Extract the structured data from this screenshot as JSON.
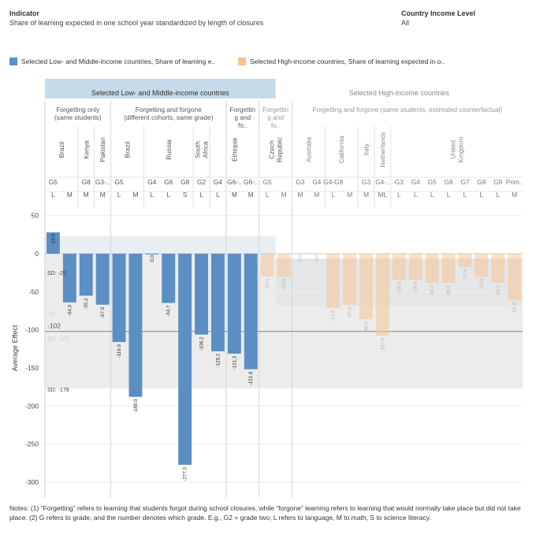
{
  "header": {
    "indicator_label": "Indicator",
    "indicator_value": "Share of learning expected in one school year standardized by length of closures",
    "income_label": "Country Income Level",
    "income_value": "All"
  },
  "legend": [
    {
      "label": "Selected Low- and Middle-income countries, Share of learning e..",
      "color": "#5b8fc3"
    },
    {
      "label": "Selected High-income countries, Share of learning expected in o..",
      "color": "#f5c28f"
    }
  ],
  "notes": "Notes: (1) “Forgetting” refers to learning that students forgot during school closures, while “forgone” learning refers to learning that would normally take place but did not take place.  (2)  G refers to grade, and the number denotes which grade. E.g., G2 = grade two; L refers to language, M to math, S to science literacy.",
  "colors": {
    "lmic": "#5b8fc3",
    "hic": "#f5c28f",
    "lmic_header": "#c5dbe9",
    "sd_band": "#ececec"
  },
  "chart_data": {
    "type": "bar",
    "ylabel": "Average Effect",
    "ylim": [
      -315,
      60
    ],
    "yticks": [
      50,
      0,
      -50,
      -100,
      -150,
      -200,
      -250,
      -300
    ],
    "reference_line": {
      "value": -102,
      "label": "-102"
    },
    "sd_annotations": [
      {
        "label": "SD: -25",
        "value": -25
      },
      {
        "label": "SD: -178",
        "value": -178
      }
    ],
    "faded_labels": [
      {
        "label": "-69",
        "value": -69
      },
      {
        "label": "SD: -102",
        "value": -102
      }
    ],
    "group_headers": [
      {
        "label": "Selected Low- and Middle-income countries",
        "from": 0,
        "to": 14
      },
      {
        "label": "Selected High-income countries",
        "from": 14,
        "to": 29
      }
    ],
    "subgroup_headers": [
      {
        "label": "Forgetting only (same students)",
        "from": 0,
        "to": 4
      },
      {
        "label": "Forgetting and forgone (different cohorts, same grade)",
        "from": 4,
        "to": 11
      },
      {
        "label": "Forgettin g and fo..",
        "from": 11,
        "to": 13
      },
      {
        "label": "Forgettin g and fo..",
        "from": 13,
        "to": 15
      },
      {
        "label": "Forgetting and forgone (same students, estimated counterfactual)",
        "from": 15,
        "to": 29
      }
    ],
    "countries": [
      {
        "label": "Brazil",
        "from": 0,
        "to": 2
      },
      {
        "label": "Kenya",
        "from": 2,
        "to": 3
      },
      {
        "label": "Pakistan",
        "from": 3,
        "to": 4
      },
      {
        "label": "Brazil",
        "from": 4,
        "to": 6
      },
      {
        "label": "Russia",
        "from": 6,
        "to": 9
      },
      {
        "label": "South Africa",
        "from": 9,
        "to": 10
      },
      {
        "label": "Ethiopia",
        "from": 10,
        "to": 13
      },
      {
        "label": "Czech Republic",
        "from": 13,
        "to": 15
      },
      {
        "label": "Australia",
        "from": 15,
        "to": 17
      },
      {
        "label": "California",
        "from": 17,
        "to": 19
      },
      {
        "label": "Italy",
        "from": 19,
        "to": 20
      },
      {
        "label": "Netherlands",
        "from": 20,
        "to": 21
      },
      {
        "label": "United Kingdom",
        "from": 21,
        "to": 29
      }
    ],
    "bars": [
      {
        "grade": "G5",
        "subject": "L",
        "value": 28.0,
        "label": "28.0",
        "series": "lmic"
      },
      {
        "grade": "",
        "subject": "M",
        "value": -64.0,
        "label": "-64.0",
        "series": "lmic"
      },
      {
        "grade": "G8",
        "subject": "M",
        "value": -55.2,
        "label": "-55.2",
        "series": "lmic"
      },
      {
        "grade": "G3-..",
        "subject": "M",
        "value": -67.0,
        "label": "-67.0",
        "series": "lmic"
      },
      {
        "grade": "G5",
        "subject": "L",
        "value": -116.0,
        "label": "-116.0",
        "series": "lmic"
      },
      {
        "grade": "",
        "subject": "M",
        "value": -188.0,
        "label": "-188.0",
        "series": "lmic"
      },
      {
        "grade": "G4",
        "subject": "L",
        "value": 0.0,
        "label": "0.0",
        "series": "lmic"
      },
      {
        "grade": "G6",
        "subject": "L",
        "value": -64.7,
        "label": "-64.7",
        "series": "lmic"
      },
      {
        "grade": "G8",
        "subject": "S",
        "value": -277.3,
        "label": "-277.3",
        "series": "lmic"
      },
      {
        "grade": "G2",
        "subject": "L",
        "value": -106.2,
        "label": "-106.2",
        "series": "lmic"
      },
      {
        "grade": "G4",
        "subject": "L",
        "value": -128.2,
        "label": "-128.2",
        "series": "lmic"
      },
      {
        "grade": "G6-..",
        "subject": "M",
        "value": -131.3,
        "label": "-131.3",
        "series": "lmic"
      },
      {
        "grade": "G6-..",
        "subject": "M",
        "value": -151.8,
        "label": "-151.8",
        "series": "lmic"
      },
      {
        "grade": "G5",
        "subject": "L",
        "value": -30.0,
        "label": "-30.0",
        "series": "hic"
      },
      {
        "grade": "",
        "subject": "M",
        "value": -30.0,
        "label": "-30.0",
        "series": "hic"
      },
      {
        "grade": "G3",
        "subject": "M",
        "value": 0.0,
        "label": "0.0",
        "series": "hic"
      },
      {
        "grade": "G4",
        "subject": "M",
        "value": 0.0,
        "label": "0.0",
        "series": "hic"
      },
      {
        "grade": "G4-G8",
        "subject": "L",
        "value": -71.4,
        "label": "-71.4",
        "series": "hic"
      },
      {
        "grade": "",
        "subject": "M",
        "value": -67.0,
        "label": "-67.0",
        "series": "hic"
      },
      {
        "grade": "G3",
        "subject": "M",
        "value": -86.0,
        "label": "-86.0",
        "series": "hic"
      },
      {
        "grade": "G4-..",
        "subject": "ML",
        "value": -107.6,
        "label": "-107.6",
        "series": "hic"
      },
      {
        "grade": "G3",
        "subject": "L",
        "value": -34.0,
        "label": "-34.0",
        "series": "hic"
      },
      {
        "grade": "G4",
        "subject": "L",
        "value": -34.0,
        "label": "-34.0",
        "series": "hic"
      },
      {
        "grade": "G5",
        "subject": "L",
        "value": -38.2,
        "label": "-38.2",
        "series": "hic"
      },
      {
        "grade": "G6",
        "subject": "L",
        "value": -38.2,
        "label": "-38.2",
        "series": "hic"
      },
      {
        "grade": "G7",
        "subject": "L",
        "value": -17.4,
        "label": "-17.4",
        "series": "hic"
      },
      {
        "grade": "G8",
        "subject": "L",
        "value": -30.0,
        "label": "-30.0",
        "series": "hic"
      },
      {
        "grade": "G9",
        "subject": "L",
        "value": -38.1,
        "label": "-38.1",
        "series": "hic"
      },
      {
        "grade": "Prim..",
        "subject": "M",
        "value": -61.0,
        "label": "-61.0",
        "series": "hic"
      }
    ]
  }
}
